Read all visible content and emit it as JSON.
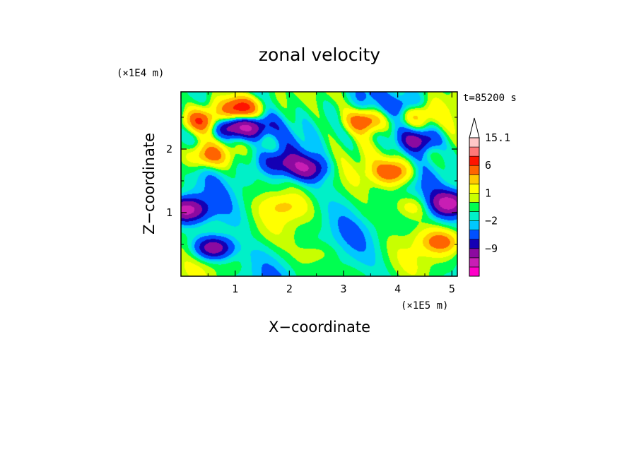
{
  "chart_data": {
    "type": "heatmap",
    "title": "zonal velocity",
    "xlabel": "X−coordinate",
    "ylabel": "Z−coordinate",
    "x_scale_label": "(×1E5 m)",
    "y_scale_label": "(×1E4 m)",
    "time_label": "t=85200 s",
    "xlim": [
      0,
      5.1
    ],
    "ylim": [
      0,
      2.9
    ],
    "x_ticks": [
      1,
      2,
      3,
      4,
      5
    ],
    "y_ticks": [
      1,
      2
    ],
    "x_tick_labels": [
      "1",
      "2",
      "3",
      "4",
      "5"
    ],
    "y_tick_labels": [
      "1",
      "2"
    ],
    "grid": false,
    "colorbar": {
      "levels": [
        -15,
        -12,
        -9,
        -6,
        -4,
        -2,
        -1,
        0,
        1,
        2,
        4,
        6,
        9,
        12,
        15.1
      ],
      "colors": [
        "#ff00c8",
        "#c81eb4",
        "#8c0aa0",
        "#1400b4",
        "#0050ff",
        "#00c8ff",
        "#00f0c8",
        "#00ff50",
        "#c8ff00",
        "#ffff00",
        "#ffc800",
        "#ff6400",
        "#ff1400",
        "#ff7878",
        "#ffc8c8"
      ],
      "tick_labels": [
        "15.1",
        "6",
        "1",
        "−2",
        "−9"
      ],
      "extend": "max"
    },
    "field_features": [
      {
        "x": 0.35,
        "z": 2.45,
        "value": 8
      },
      {
        "x": 1.1,
        "z": 2.65,
        "value": 10
      },
      {
        "x": 1.3,
        "z": 2.35,
        "value": -8
      },
      {
        "x": 0.9,
        "z": 2.35,
        "value": -8
      },
      {
        "x": 0.5,
        "z": 1.9,
        "value": 7
      },
      {
        "x": 0.1,
        "z": 1.05,
        "value": -10
      },
      {
        "x": 0.6,
        "z": 0.45,
        "value": -9
      },
      {
        "x": 2.3,
        "z": 1.7,
        "value": -7
      },
      {
        "x": 1.8,
        "z": 1.8,
        "value": -5
      },
      {
        "x": 3.4,
        "z": 2.45,
        "value": 9
      },
      {
        "x": 3.9,
        "z": 1.65,
        "value": 8
      },
      {
        "x": 4.3,
        "z": 2.6,
        "value": 8
      },
      {
        "x": 4.4,
        "z": 2.15,
        "value": -8
      },
      {
        "x": 4.2,
        "z": 2.65,
        "value": -8
      },
      {
        "x": 4.95,
        "z": 1.15,
        "value": -10
      },
      {
        "x": 4.8,
        "z": 0.55,
        "value": 7
      },
      {
        "x": 1.9,
        "z": 1.1,
        "value": 3
      },
      {
        "x": 3.5,
        "z": 1.0,
        "value": 0.5
      },
      {
        "x": 4.3,
        "z": 1.1,
        "value": 3
      },
      {
        "x": 2.5,
        "z": 0.35,
        "value": 2
      },
      {
        "x": 1.2,
        "z": 0.6,
        "value": 0.5
      }
    ]
  }
}
